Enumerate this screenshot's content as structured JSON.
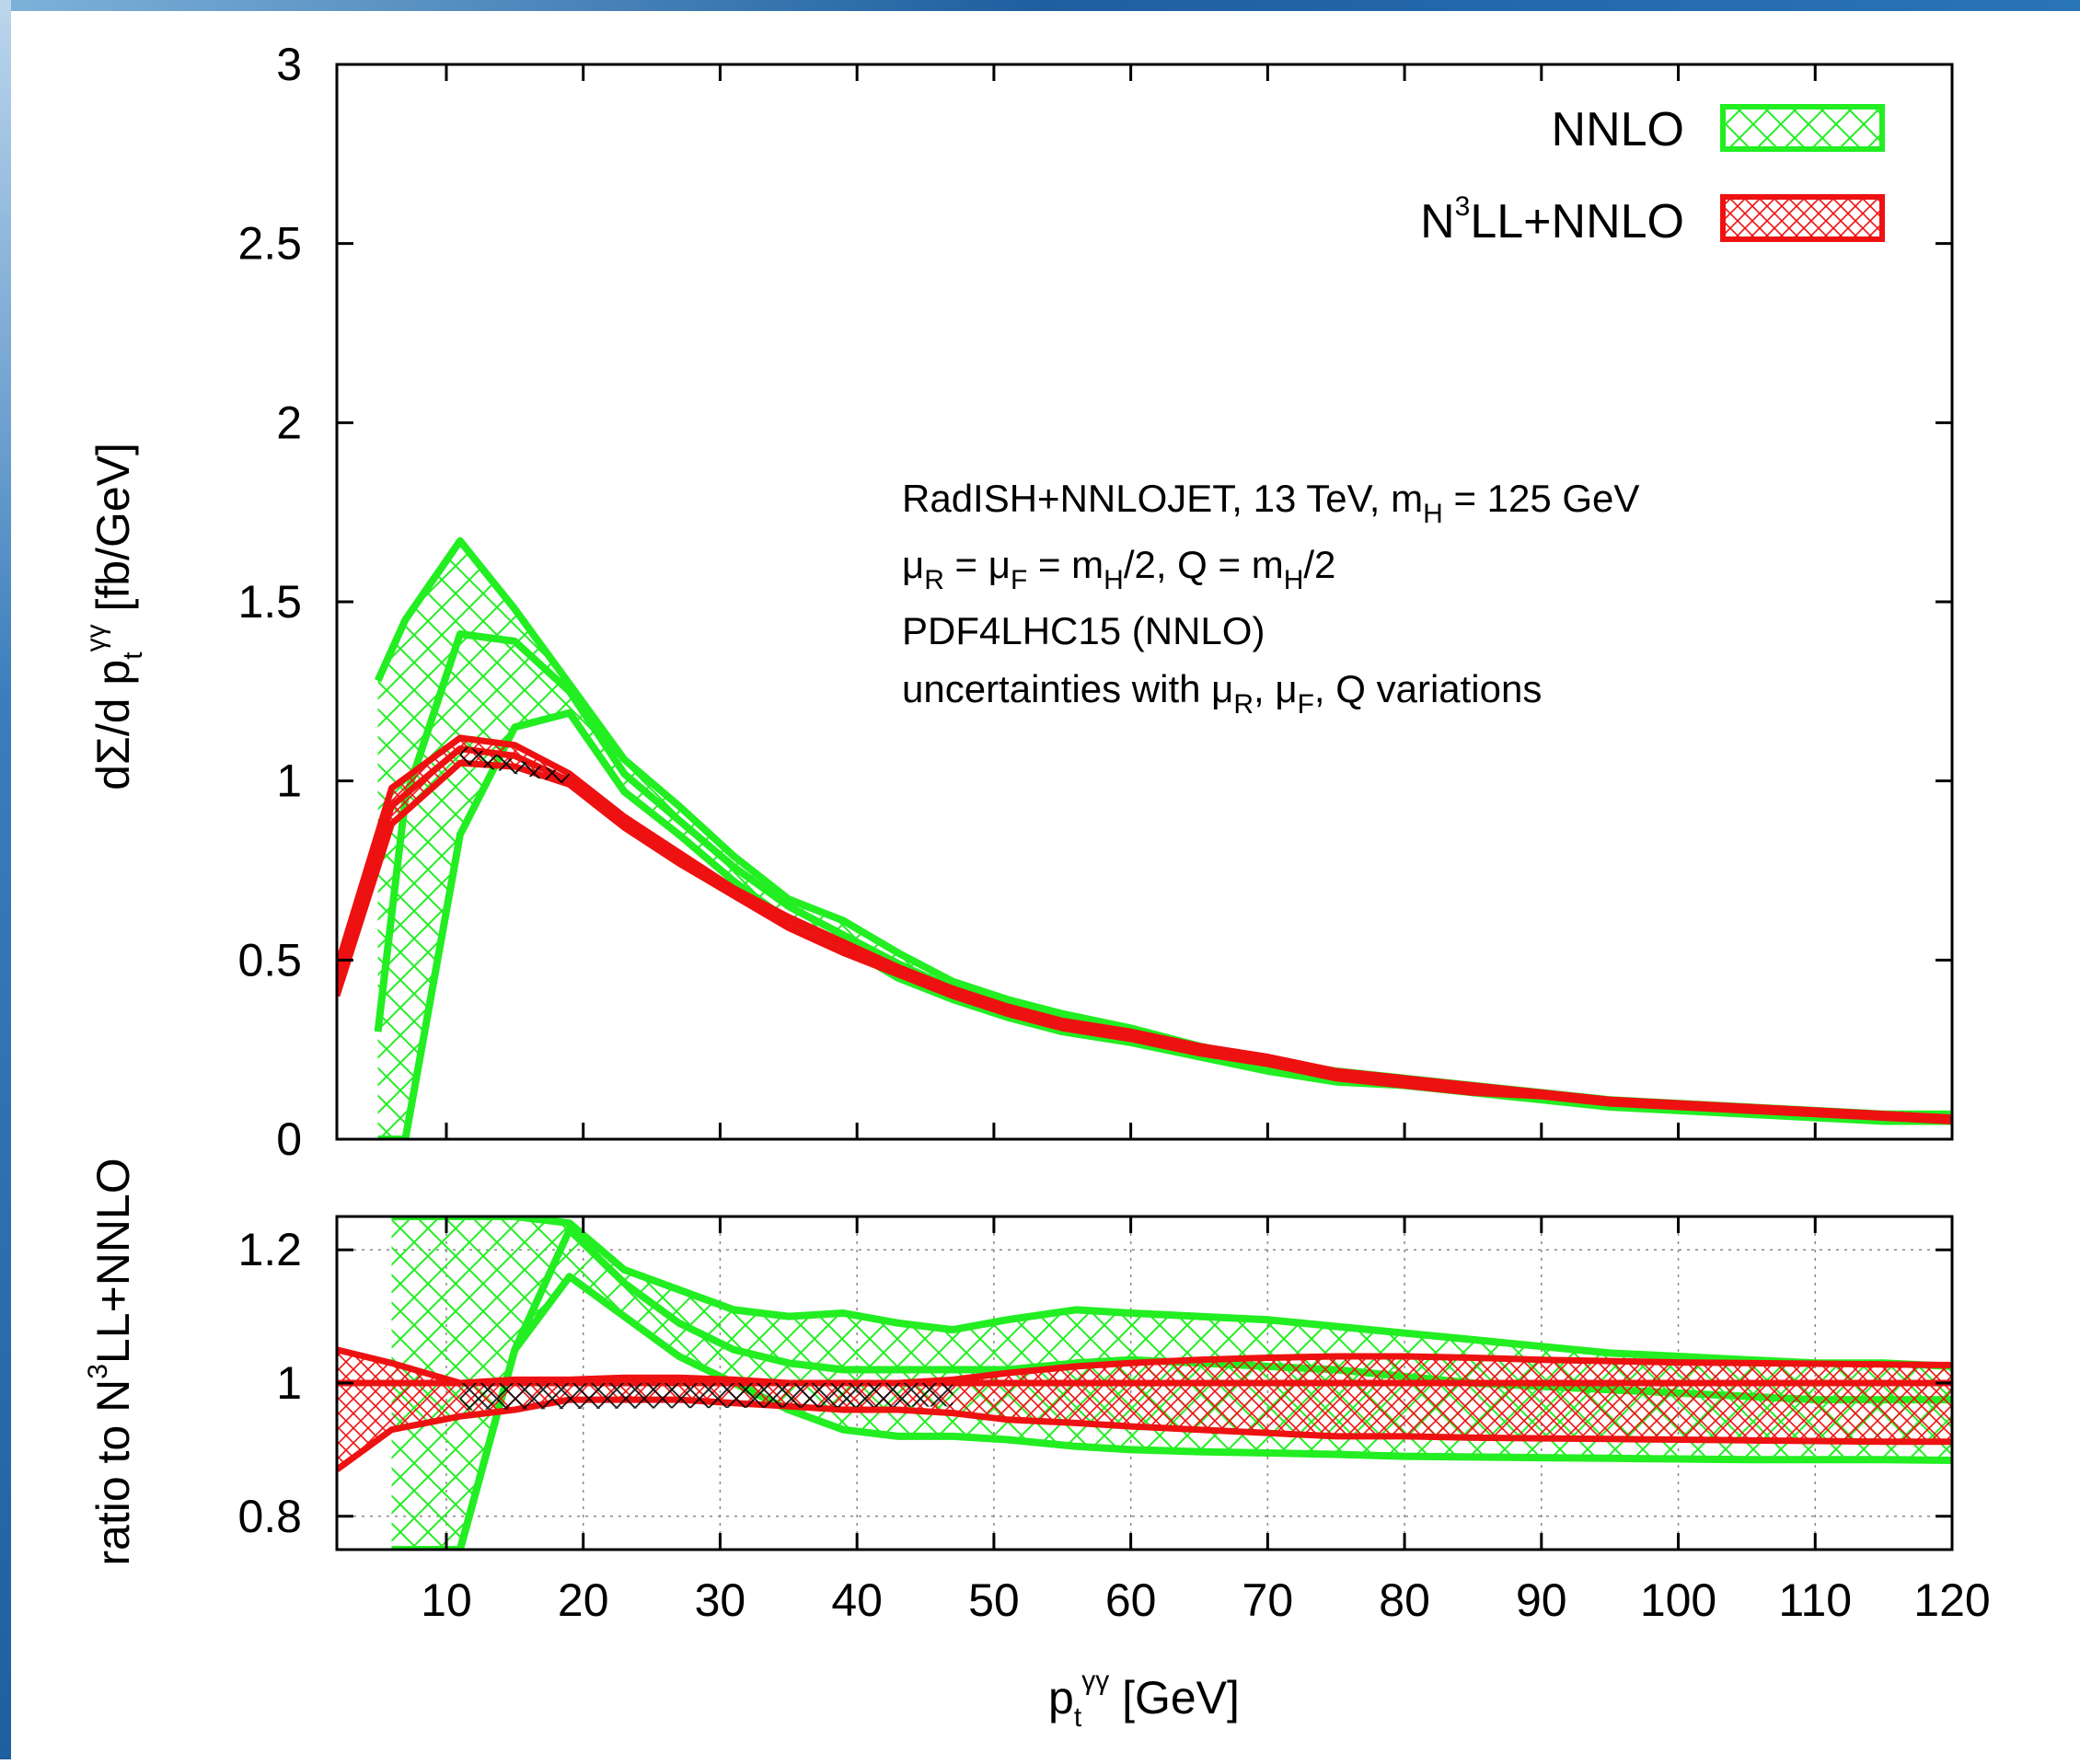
{
  "colors": {
    "nnlo": "#22ee22",
    "n3ll": "#ee1111",
    "overlap": "#000000",
    "frame_border": "#1e5fa0"
  },
  "legend": {
    "items": [
      {
        "key": "nnlo",
        "label": "NNLO",
        "color": "#22ee22"
      },
      {
        "key": "n3ll",
        "label_main": "N",
        "label_sup": "3",
        "label_rest": "LL+NNLO",
        "color": "#ee1111"
      }
    ],
    "position": "top-right"
  },
  "annotation": {
    "line1": {
      "a": "RadISH+NNLOJET, 13 TeV, m",
      "sub": "H",
      "b": " = 125 GeV"
    },
    "line2": {
      "mu": "μ",
      "sub1": "R",
      "eq1": " = μ",
      "sub2": "F",
      "eq2": " = m",
      "sub3": "H",
      "eq3": "/2, Q = m",
      "sub4": "H",
      "eq4": "/2"
    },
    "line3": "PDF4LHC15 (NNLO)",
    "line4": {
      "a": "uncertainties with μ",
      "sub1": "R",
      "b": ", μ",
      "sub2": "F",
      "c": ", Q variations"
    }
  },
  "chart_data": [
    {
      "type": "area",
      "panel": "main",
      "xlim": [
        2,
        120
      ],
      "ylim": [
        0,
        3
      ],
      "x_ticks": [
        10,
        20,
        30,
        40,
        50,
        60,
        70,
        80,
        90,
        100,
        110,
        120
      ],
      "y_ticks": [
        0,
        0.5,
        1,
        1.5,
        2,
        2.5,
        3
      ],
      "y_tick_labels": [
        "0",
        "0.5",
        "1",
        "1.5",
        "2",
        "2.5",
        "3"
      ],
      "ylabel": {
        "main": "dΣ/d p",
        "sub": "t",
        "sup": "γγ",
        "unit": " [fb/GeV]"
      },
      "series": [
        {
          "name": "NNLO",
          "x": [
            5,
            7,
            11,
            15,
            19,
            23,
            27,
            31,
            35,
            39,
            43,
            47,
            51,
            55,
            60,
            65,
            70,
            75,
            80,
            85,
            90,
            95,
            100,
            105,
            110,
            115,
            120
          ],
          "upper": [
            1.28,
            1.45,
            1.67,
            1.48,
            1.27,
            1.06,
            0.93,
            0.79,
            0.67,
            0.61,
            0.52,
            0.44,
            0.39,
            0.35,
            0.31,
            0.26,
            0.22,
            0.19,
            0.17,
            0.15,
            0.13,
            0.11,
            0.1,
            0.09,
            0.08,
            0.07,
            0.07
          ],
          "central": [
            0.3,
            0.95,
            1.41,
            1.39,
            1.25,
            1.02,
            0.89,
            0.76,
            0.65,
            0.57,
            0.49,
            0.42,
            0.37,
            0.33,
            0.29,
            0.25,
            0.21,
            0.18,
            0.16,
            0.14,
            0.12,
            0.1,
            0.09,
            0.08,
            0.07,
            0.06,
            0.06
          ],
          "lower": [
            0.0,
            0.0,
            0.85,
            1.15,
            1.19,
            0.97,
            0.85,
            0.72,
            0.61,
            0.54,
            0.45,
            0.39,
            0.34,
            0.3,
            0.27,
            0.23,
            0.19,
            0.16,
            0.15,
            0.13,
            0.11,
            0.09,
            0.08,
            0.07,
            0.06,
            0.05,
            0.05
          ]
        },
        {
          "name": "N3LL+NNLO",
          "x": [
            2,
            6,
            11,
            15,
            19,
            23,
            27,
            31,
            35,
            39,
            43,
            47,
            51,
            55,
            60,
            65,
            70,
            75,
            80,
            85,
            90,
            95,
            100,
            105,
            110,
            115,
            120
          ],
          "upper": [
            0.48,
            0.98,
            1.12,
            1.1,
            1.02,
            0.9,
            0.8,
            0.7,
            0.62,
            0.55,
            0.48,
            0.42,
            0.37,
            0.33,
            0.3,
            0.26,
            0.23,
            0.19,
            0.17,
            0.15,
            0.13,
            0.11,
            0.1,
            0.09,
            0.08,
            0.07,
            0.06
          ],
          "central": [
            0.44,
            0.93,
            1.09,
            1.07,
            1.0,
            0.88,
            0.78,
            0.69,
            0.61,
            0.54,
            0.47,
            0.41,
            0.36,
            0.32,
            0.29,
            0.25,
            0.22,
            0.18,
            0.16,
            0.14,
            0.12,
            0.11,
            0.1,
            0.09,
            0.08,
            0.07,
            0.06
          ],
          "lower": [
            0.4,
            0.88,
            1.05,
            1.04,
            0.99,
            0.87,
            0.77,
            0.68,
            0.59,
            0.52,
            0.46,
            0.4,
            0.35,
            0.31,
            0.28,
            0.24,
            0.21,
            0.17,
            0.15,
            0.13,
            0.12,
            0.1,
            0.09,
            0.08,
            0.07,
            0.06,
            0.05
          ]
        }
      ]
    },
    {
      "type": "area",
      "panel": "ratio",
      "xlim": [
        2,
        120
      ],
      "ylim": [
        0.75,
        1.25
      ],
      "x_ticks": [
        10,
        20,
        30,
        40,
        50,
        60,
        70,
        80,
        90,
        100,
        110,
        120
      ],
      "x_tick_labels": [
        "10",
        "20",
        "30",
        "40",
        "50",
        "60",
        "70",
        "80",
        "90",
        "100",
        "110",
        "120"
      ],
      "y_ticks": [
        0.8,
        1,
        1.2
      ],
      "y_tick_labels": [
        "0.8",
        "1",
        "1.2"
      ],
      "grid": true,
      "ylabel": {
        "main": "ratio to N",
        "sup": "3",
        "rest": "LL+NNLO"
      },
      "xlabel": {
        "main": "p",
        "sub": "t",
        "sup": "γγ",
        "unit": " [GeV]"
      },
      "series": [
        {
          "name": "NNLO",
          "x": [
            6,
            8,
            11,
            15,
            19,
            23,
            27,
            31,
            35,
            39,
            43,
            47,
            51,
            56,
            60,
            65,
            70,
            75,
            80,
            85,
            90,
            95,
            100,
            105,
            110,
            115,
            120
          ],
          "upper": [
            1.25,
            1.25,
            1.25,
            1.25,
            1.24,
            1.17,
            1.14,
            1.11,
            1.1,
            1.105,
            1.09,
            1.08,
            1.095,
            1.11,
            1.105,
            1.1,
            1.095,
            1.085,
            1.075,
            1.065,
            1.055,
            1.045,
            1.04,
            1.035,
            1.03,
            1.03,
            1.025
          ],
          "central": [
            0.75,
            0.75,
            0.75,
            1.05,
            1.23,
            1.15,
            1.09,
            1.05,
            1.03,
            1.02,
            1.02,
            1.02,
            1.02,
            1.03,
            1.035,
            1.03,
            1.025,
            1.02,
            1.01,
            1.0,
            0.995,
            0.99,
            0.985,
            0.98,
            0.975,
            0.975,
            0.975
          ],
          "lower": [
            0.75,
            0.75,
            0.75,
            1.05,
            1.16,
            1.1,
            1.04,
            1.0,
            0.96,
            0.93,
            0.92,
            0.92,
            0.915,
            0.905,
            0.9,
            0.897,
            0.895,
            0.893,
            0.89,
            0.889,
            0.888,
            0.887,
            0.886,
            0.885,
            0.885,
            0.885,
            0.884
          ]
        },
        {
          "name": "N3LL+NNLO",
          "x": [
            2,
            6,
            11,
            15,
            19,
            23,
            27,
            31,
            35,
            39,
            43,
            47,
            51,
            56,
            60,
            65,
            70,
            75,
            80,
            85,
            90,
            95,
            100,
            105,
            110,
            115,
            120
          ],
          "upper": [
            1.05,
            1.03,
            1.0,
            1.005,
            1.005,
            1.008,
            1.008,
            1.005,
            1.0,
            1.0,
            1.0,
            1.005,
            1.015,
            1.025,
            1.03,
            1.035,
            1.038,
            1.04,
            1.04,
            1.038,
            1.035,
            1.033,
            1.031,
            1.03,
            1.029,
            1.028,
            1.027
          ],
          "central": [
            1.0,
            1.0,
            1.0,
            1.0,
            1.0,
            1.0,
            1.0,
            1.0,
            1.0,
            1.0,
            1.0,
            1.0,
            1.0,
            1.0,
            1.0,
            1.0,
            1.0,
            1.0,
            1.0,
            1.0,
            1.0,
            1.0,
            1.0,
            1.0,
            1.0,
            1.0,
            1.0
          ],
          "lower": [
            0.87,
            0.93,
            0.95,
            0.96,
            0.975,
            0.975,
            0.975,
            0.97,
            0.965,
            0.96,
            0.96,
            0.955,
            0.945,
            0.94,
            0.935,
            0.93,
            0.925,
            0.92,
            0.92,
            0.918,
            0.917,
            0.916,
            0.915,
            0.914,
            0.913,
            0.912,
            0.912
          ]
        }
      ]
    }
  ]
}
